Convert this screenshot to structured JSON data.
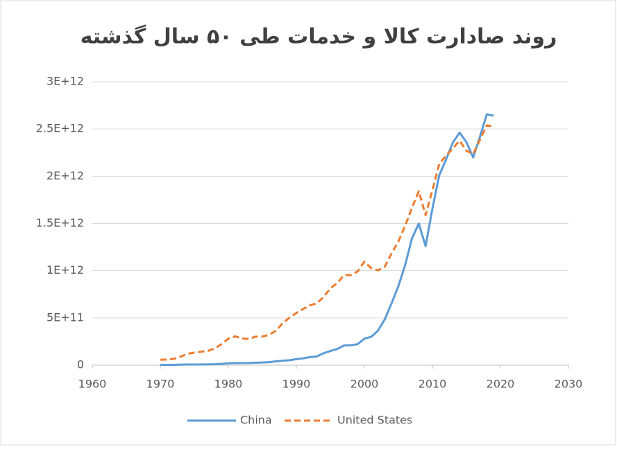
{
  "chart_data": {
    "type": "line",
    "title": "روند صادارت کالا و خدمات طی ۵۰ سال گذشته",
    "x": [
      1970,
      1971,
      1972,
      1973,
      1974,
      1975,
      1976,
      1977,
      1978,
      1979,
      1980,
      1981,
      1982,
      1983,
      1984,
      1985,
      1986,
      1987,
      1988,
      1989,
      1990,
      1991,
      1992,
      1993,
      1994,
      1995,
      1996,
      1997,
      1998,
      1999,
      2000,
      2001,
      2002,
      2003,
      2004,
      2005,
      2006,
      2007,
      2008,
      2009,
      2010,
      2011,
      2012,
      2013,
      2014,
      2015,
      2016,
      2017,
      2018,
      2019
    ],
    "series": [
      {
        "name": "China",
        "color": "#5b9bd5",
        "dashed": false,
        "values": [
          2500000000.0,
          3000000000.0,
          3700000000.0,
          5800000000.0,
          7000000000.0,
          7700000000.0,
          7300000000.0,
          8000000000.0,
          10000000000.0,
          13700000000.0,
          19000000000.0,
          22000000000.0,
          22000000000.0,
          23000000000.0,
          26000000000.0,
          28000000000.0,
          32000000000.0,
          40000000000.0,
          48000000000.0,
          52000000000.0,
          63000000000.0,
          72000000000.0,
          85000000000.0,
          92000000000.0,
          126000000000.0,
          150000000000.0,
          171000000000.0,
          208000000000.0,
          211000000000.0,
          222000000000.0,
          280000000000.0,
          300000000000.0,
          365000000000.0,
          485000000000.0,
          655000000000.0,
          836000000000.0,
          1061000000000.0,
          1342000000000.0,
          1499000000000.0,
          1260000000000.0,
          1654000000000.0,
          2008000000000.0,
          2175000000000.0,
          2355000000000.0,
          2462000000000.0,
          2362000000000.0,
          2199000000000.0,
          2420000000000.0,
          2656000000000.0,
          2641000000000.0
        ]
      },
      {
        "name": "United States",
        "color": "#ed7d31",
        "dashed": true,
        "values": [
          57000000000.0,
          60000000000.0,
          67000000000.0,
          91000000000.0,
          120000000000.0,
          133000000000.0,
          143000000000.0,
          151000000000.0,
          177000000000.0,
          223000000000.0,
          281000000000.0,
          305000000000.0,
          283000000000.0,
          277000000000.0,
          302000000000.0,
          303000000000.0,
          321000000000.0,
          364000000000.0,
          445000000000.0,
          504000000000.0,
          552000000000.0,
          595000000000.0,
          633000000000.0,
          655000000000.0,
          721000000000.0,
          813000000000.0,
          868000000000.0,
          954000000000.0,
          953000000000.0,
          992000000000.0,
          1096000000000.0,
          1027000000000.0,
          1003000000000.0,
          1041000000000.0,
          1183000000000.0,
          1309000000000.0,
          1476000000000.0,
          1665000000000.0,
          1842000000000.0,
          1588000000000.0,
          1853000000000.0,
          2128000000000.0,
          2218000000000.0,
          2294000000000.0,
          2377000000000.0,
          2270000000000.0,
          2235000000000.0,
          2388000000000.0,
          2539000000000.0,
          2528000000000.0
        ]
      }
    ],
    "xlim": [
      1960,
      2030
    ],
    "xticks": [
      1960,
      1970,
      1980,
      1990,
      2000,
      2010,
      2020,
      2030
    ],
    "ylim": [
      0,
      3000000000000
    ],
    "yticks": [
      0,
      {
        "value": 500000000000,
        "label": "5E+11"
      },
      {
        "value": 1000000000000,
        "label": "1E+12"
      },
      {
        "value": 1500000000000,
        "label": "1.5E+12"
      },
      {
        "value": 2000000000000,
        "label": "2E+12"
      },
      {
        "value": 2500000000000,
        "label": "2.5E+12"
      },
      {
        "value": 3000000000000,
        "label": "3E+12"
      }
    ],
    "grid": true,
    "legend": "bottom"
  }
}
